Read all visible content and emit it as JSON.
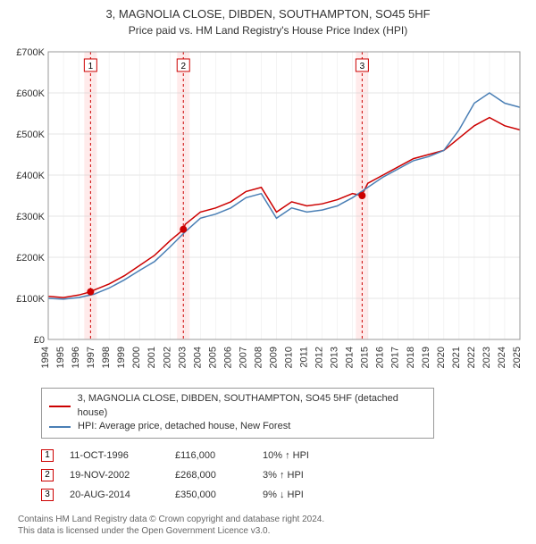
{
  "title": "3, MAGNOLIA CLOSE, DIBDEN, SOUTHAMPTON, SO45 5HF",
  "subtitle": "Price paid vs. HM Land Registry's House Price Index (HPI)",
  "chart": {
    "type": "line",
    "x_years": [
      1994,
      1995,
      1996,
      1997,
      1998,
      1999,
      2000,
      2001,
      2002,
      2003,
      2004,
      2005,
      2006,
      2007,
      2008,
      2009,
      2010,
      2011,
      2012,
      2013,
      2014,
      2015,
      2016,
      2017,
      2018,
      2019,
      2020,
      2021,
      2022,
      2023,
      2024,
      2025
    ],
    "ylim": [
      0,
      700000
    ],
    "ytick_step": 100000,
    "ytick_labels": [
      "£0",
      "£100K",
      "£200K",
      "£300K",
      "£400K",
      "£500K",
      "£600K",
      "£700K"
    ],
    "background_color": "#ffffff",
    "grid_color": "#cccccc",
    "grid_vertical_color": "#e8e8e8",
    "label_fontsize": 11,
    "series": [
      {
        "name": "property",
        "color": "#cc0000",
        "width": 1.5,
        "values_by_year": {
          "1994": 105000,
          "1995": 102000,
          "1996": 108000,
          "1996.8": 116000,
          "1997": 120000,
          "1998": 135000,
          "1999": 155000,
          "2000": 180000,
          "2001": 205000,
          "2002": 240000,
          "2002.9": 268000,
          "2003": 280000,
          "2004": 310000,
          "2005": 320000,
          "2006": 335000,
          "2007": 360000,
          "2008": 370000,
          "2009": 310000,
          "2010": 335000,
          "2011": 325000,
          "2012": 330000,
          "2013": 340000,
          "2014": 355000,
          "2014.6": 350000,
          "2015": 380000,
          "2016": 400000,
          "2017": 420000,
          "2018": 440000,
          "2019": 450000,
          "2020": 460000,
          "2021": 490000,
          "2022": 520000,
          "2023": 540000,
          "2024": 520000,
          "2025": 510000
        }
      },
      {
        "name": "hpi",
        "color": "#4a7fb5",
        "width": 1.5,
        "values_by_year": {
          "1994": 100000,
          "1995": 98000,
          "1996": 102000,
          "1997": 110000,
          "1998": 125000,
          "1999": 145000,
          "2000": 168000,
          "2001": 190000,
          "2002": 225000,
          "2003": 262000,
          "2004": 295000,
          "2005": 305000,
          "2006": 320000,
          "2007": 345000,
          "2008": 355000,
          "2009": 295000,
          "2010": 320000,
          "2011": 310000,
          "2012": 315000,
          "2013": 325000,
          "2014": 345000,
          "2015": 370000,
          "2016": 395000,
          "2017": 415000,
          "2018": 435000,
          "2019": 445000,
          "2020": 460000,
          "2021": 510000,
          "2022": 575000,
          "2023": 600000,
          "2024": 575000,
          "2025": 565000
        }
      }
    ],
    "sale_markers": [
      {
        "n": 1,
        "year_frac": 1996.78,
        "price": 116000,
        "band_color": "#fdd",
        "line_color": "#cc0000"
      },
      {
        "n": 2,
        "year_frac": 2002.88,
        "price": 268000,
        "band_color": "#fdd",
        "line_color": "#cc0000"
      },
      {
        "n": 3,
        "year_frac": 2014.63,
        "price": 350000,
        "band_color": "#fdd",
        "line_color": "#cc0000"
      }
    ],
    "marker_dot_color": "#cc0000",
    "marker_box_border": "#cc0000",
    "marker_box_fill": "#ffffff"
  },
  "legend": {
    "items": [
      {
        "color": "#cc0000",
        "label": "3, MAGNOLIA CLOSE, DIBDEN, SOUTHAMPTON, SO45 5HF (detached house)"
      },
      {
        "color": "#4a7fb5",
        "label": "HPI: Average price, detached house, New Forest"
      }
    ]
  },
  "sales": [
    {
      "n": "1",
      "date": "11-OCT-1996",
      "price": "£116,000",
      "delta": "10% ↑ HPI",
      "border": "#cc0000"
    },
    {
      "n": "2",
      "date": "19-NOV-2002",
      "price": "£268,000",
      "delta": "3% ↑ HPI",
      "border": "#cc0000"
    },
    {
      "n": "3",
      "date": "20-AUG-2014",
      "price": "£350,000",
      "delta": "9% ↓ HPI",
      "border": "#cc0000"
    }
  ],
  "footnote_line1": "Contains HM Land Registry data © Crown copyright and database right 2024.",
  "footnote_line2": "This data is licensed under the Open Government Licence v3.0."
}
